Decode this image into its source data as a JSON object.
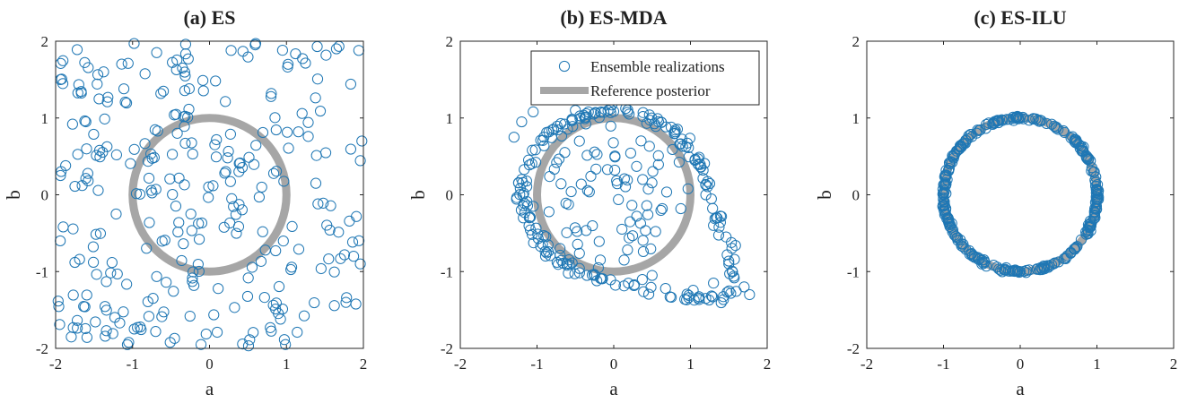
{
  "colors": {
    "marker": "#1f77b4",
    "reference": "#a6a6a6",
    "axis": "#262626"
  },
  "chart_data": [
    {
      "type": "scatter",
      "title": "(a) ES",
      "xlabel": "a",
      "ylabel": "b",
      "xlim": [
        -2,
        2
      ],
      "ylim": [
        -2,
        2
      ],
      "xticks": [
        -2,
        -1,
        0,
        1,
        2
      ],
      "yticks": [
        -2,
        -1,
        0,
        1,
        2
      ],
      "grid": false,
      "legend": null,
      "series": [
        {
          "kind": "circle-markers",
          "distribution": "uniform",
          "count": 300,
          "seed": 11,
          "sample_points": [
            [
              -1.72,
              1.89
            ],
            [
              -0.98,
              1.97
            ],
            [
              -0.31,
              1.96
            ],
            [
              0.6,
              1.97
            ],
            [
              1.4,
              1.93
            ],
            [
              1.94,
              1.88
            ],
            [
              -1.87,
              0.38
            ],
            [
              -1.94,
              -0.6
            ],
            [
              1.98,
              0.7
            ],
            [
              1.96,
              -0.9
            ],
            [
              -0.7,
              -1.78
            ],
            [
              0.1,
              -1.79
            ],
            [
              1.14,
              -1.79
            ],
            [
              -1.34,
              -1.77
            ],
            [
              0.79,
              -1.73
            ]
          ]
        },
        {
          "kind": "reference-curve",
          "shape": "circle",
          "center": [
            0,
            0
          ],
          "radius": 1
        }
      ]
    },
    {
      "type": "scatter",
      "title": "(b) ES-MDA",
      "xlabel": "a",
      "ylabel": "b",
      "xlim": [
        -2,
        2
      ],
      "ylim": [
        -2,
        2
      ],
      "xticks": [
        -2,
        -1,
        0,
        1,
        2
      ],
      "yticks": [
        -2,
        -1,
        0,
        1,
        2
      ],
      "grid": false,
      "legend": {
        "placement": "top-right",
        "entries": [
          {
            "label": "Ensemble realizations",
            "kind": "marker"
          },
          {
            "label": "Reference posterior",
            "kind": "line"
          }
        ]
      },
      "series": [
        {
          "kind": "circle-markers",
          "distribution": "teardrop",
          "count": 300,
          "seed": 23,
          "sample_points": [
            [
              -1.3,
              0.75
            ],
            [
              -1.2,
              0.95
            ],
            [
              -1.05,
              1.08
            ],
            [
              -0.5,
              1.1
            ],
            [
              0.2,
              1.05
            ],
            [
              0.8,
              0.8
            ],
            [
              1.1,
              0.4
            ],
            [
              1.2,
              0.0
            ],
            [
              1.3,
              -0.4
            ],
            [
              1.5,
              -0.9
            ],
            [
              1.7,
              -1.2
            ],
            [
              1.77,
              -1.3
            ],
            [
              1.3,
              -1.15
            ],
            [
              0.5,
              -1.05
            ],
            [
              -0.2,
              -0.95
            ],
            [
              -0.7,
              -0.7
            ],
            [
              -1.1,
              -0.3
            ],
            [
              -1.2,
              0.2
            ]
          ]
        },
        {
          "kind": "reference-curve",
          "shape": "circle",
          "center": [
            0,
            0
          ],
          "radius": 1
        }
      ]
    },
    {
      "type": "scatter",
      "title": "(c) ES-ILU",
      "xlabel": "a",
      "ylabel": "b",
      "xlim": [
        -2,
        2
      ],
      "ylim": [
        -2,
        2
      ],
      "xticks": [
        -2,
        -1,
        0,
        1,
        2
      ],
      "yticks": [
        -2,
        -1,
        0,
        1,
        2
      ],
      "grid": false,
      "legend": null,
      "series": [
        {
          "kind": "circle-markers",
          "distribution": "on-circle",
          "count": 300,
          "seed": 37,
          "sample_points": [
            [
              1.0,
              0.0
            ],
            [
              0.0,
              1.0
            ],
            [
              -1.0,
              0.0
            ],
            [
              0.0,
              -1.0
            ],
            [
              0.71,
              0.71
            ],
            [
              -0.71,
              0.71
            ],
            [
              -0.71,
              -0.71
            ],
            [
              0.71,
              -0.71
            ]
          ]
        },
        {
          "kind": "reference-curve",
          "shape": "circle",
          "center": [
            0,
            0
          ],
          "radius": 1
        }
      ]
    }
  ]
}
